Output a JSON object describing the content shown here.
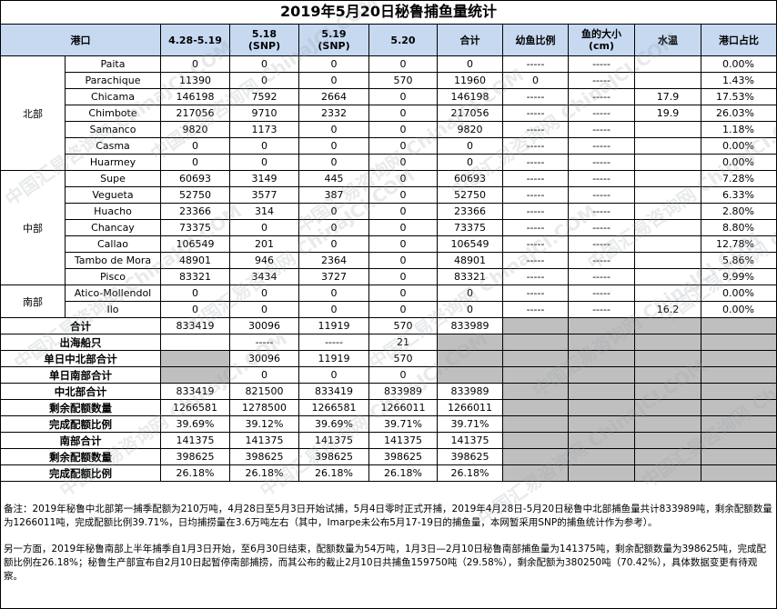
{
  "title": "2019年5月20日秘鲁捕鱼量统计",
  "headers": {
    "port": "港口",
    "c1": "4.28-5.19",
    "c2_l1": "5.18",
    "c2_l2": "(SNP)",
    "c3_l1": "5.19",
    "c3_l2": "(SNP)",
    "c4": "5.20",
    "total": "合计",
    "juvenile": "幼鱼比例",
    "size_l1": "鱼的大小",
    "size_l2": "(cm)",
    "temp": "水温",
    "share": "港口占比"
  },
  "regions": [
    {
      "name": "北部",
      "ports": [
        {
          "name": "Paita",
          "c1": "0",
          "c2": "0",
          "c3": "0",
          "c4": "0",
          "total": "0",
          "juvenile": "-----",
          "size": "-----",
          "temp": "",
          "share": "0.00%"
        },
        {
          "name": "Parachique",
          "c1": "11390",
          "c2": "0",
          "c3": "0",
          "c4": "570",
          "total": "11960",
          "juvenile": "0",
          "size": "-----",
          "temp": "",
          "share": "1.43%"
        },
        {
          "name": "Chicama",
          "c1": "146198",
          "c2": "7592",
          "c3": "2664",
          "c4": "0",
          "total": "146198",
          "juvenile": "-----",
          "size": "-----",
          "temp": "17.9",
          "share": "17.53%"
        },
        {
          "name": "Chimbote",
          "c1": "217056",
          "c2": "9710",
          "c3": "2332",
          "c4": "0",
          "total": "217056",
          "juvenile": "-----",
          "size": "-----",
          "temp": "19.9",
          "share": "26.03%"
        },
        {
          "name": "Samanco",
          "c1": "9820",
          "c2": "1173",
          "c3": "0",
          "c4": "0",
          "total": "9820",
          "juvenile": "-----",
          "size": "-----",
          "temp": "",
          "share": "1.18%"
        },
        {
          "name": "Casma",
          "c1": "0",
          "c2": "0",
          "c3": "0",
          "c4": "0",
          "total": "0",
          "juvenile": "-----",
          "size": "-----",
          "temp": "",
          "share": "0.00%"
        },
        {
          "name": "Huarmey",
          "c1": "0",
          "c2": "0",
          "c3": "0",
          "c4": "0",
          "total": "0",
          "juvenile": "-----",
          "size": "-----",
          "temp": "",
          "share": "0.00%"
        }
      ]
    },
    {
      "name": "中部",
      "ports": [
        {
          "name": "Supe",
          "c1": "60693",
          "c2": "3149",
          "c3": "445",
          "c4": "0",
          "total": "60693",
          "juvenile": "-----",
          "size": "-----",
          "temp": "",
          "share": "7.28%"
        },
        {
          "name": "Vegueta",
          "c1": "52750",
          "c2": "3577",
          "c3": "387",
          "c4": "0",
          "total": "52750",
          "juvenile": "-----",
          "size": "-----",
          "temp": "",
          "share": "6.33%"
        },
        {
          "name": "Huacho",
          "c1": "23366",
          "c2": "314",
          "c3": "0",
          "c4": "0",
          "total": "23366",
          "juvenile": "-----",
          "size": "-----",
          "temp": "",
          "share": "2.80%"
        },
        {
          "name": "Chancay",
          "c1": "73375",
          "c2": "0",
          "c3": "0",
          "c4": "0",
          "total": "73375",
          "juvenile": "-----",
          "size": "-----",
          "temp": "",
          "share": "8.80%"
        },
        {
          "name": "Callao",
          "c1": "106549",
          "c2": "201",
          "c3": "0",
          "c4": "0",
          "total": "106549",
          "juvenile": "-----",
          "size": "-----",
          "temp": "",
          "share": "12.78%"
        },
        {
          "name": "Tambo de Mora",
          "c1": "48901",
          "c2": "946",
          "c3": "2364",
          "c4": "0",
          "total": "48901",
          "juvenile": "-----",
          "size": "-----",
          "temp": "",
          "share": "5.86%"
        },
        {
          "name": "Pisco",
          "c1": "83321",
          "c2": "3434",
          "c3": "3727",
          "c4": "0",
          "total": "83321",
          "juvenile": "-----",
          "size": "-----",
          "temp": "",
          "share": "9.99%"
        }
      ]
    },
    {
      "name": "南部",
      "ports": [
        {
          "name": "Atico-Mollendol",
          "c1": "0",
          "c2": "0",
          "c3": "0",
          "c4": "0",
          "total": "0",
          "juvenile": "-----",
          "size": "-----",
          "temp": "",
          "share": "0.00%"
        },
        {
          "name": "Ilo",
          "c1": "0",
          "c2": "0",
          "c3": "0",
          "c4": "0",
          "total": "0",
          "juvenile": "-----",
          "size": "-----",
          "temp": "16.2",
          "share": "0.00%"
        }
      ]
    }
  ],
  "summary": [
    {
      "label": "合计",
      "c1": "833419",
      "c2": "30096",
      "c3": "11919",
      "c4": "570",
      "total": "833989",
      "gray": [
        false,
        false,
        false,
        false,
        false
      ]
    },
    {
      "label": "出海船只",
      "c1": "",
      "c2": "-----",
      "c3": "-----",
      "c4": "21",
      "total": "",
      "gray": [
        false,
        false,
        false,
        false,
        true
      ]
    },
    {
      "label": "单日中北部合计",
      "c1": "",
      "c2": "30096",
      "c3": "11919",
      "c4": "570",
      "total": "",
      "gray": [
        true,
        false,
        false,
        false,
        true
      ]
    },
    {
      "label": "单日南部合计",
      "c1": "",
      "c2": "0",
      "c3": "0",
      "c4": "0",
      "total": "",
      "gray": [
        true,
        false,
        false,
        false,
        true
      ]
    },
    {
      "label": "中北部合计",
      "c1": "833419",
      "c2": "821500",
      "c3": "833419",
      "c4": "833989",
      "total": "833989",
      "gray": [
        false,
        false,
        false,
        false,
        false
      ]
    },
    {
      "label": "剩余配额数量",
      "c1": "1266581",
      "c2": "1278500",
      "c3": "1266581",
      "c4": "1266011",
      "total": "1266011",
      "gray": [
        false,
        false,
        false,
        false,
        false
      ]
    },
    {
      "label": "完成配额比例",
      "c1": "39.69%",
      "c2": "39.12%",
      "c3": "39.69%",
      "c4": "39.71%",
      "total": "39.71%",
      "gray": [
        false,
        false,
        false,
        false,
        false
      ]
    },
    {
      "label": "南部合计",
      "c1": "141375",
      "c2": "141375",
      "c3": "141375",
      "c4": "141375",
      "total": "141375",
      "gray": [
        false,
        false,
        false,
        false,
        false
      ]
    },
    {
      "label": "剩余配额数量",
      "c1": "398625",
      "c2": "398625",
      "c3": "398625",
      "c4": "398625",
      "total": "398625",
      "gray": [
        false,
        false,
        false,
        false,
        false
      ]
    },
    {
      "label": "完成配额比例",
      "c1": "26.18%",
      "c2": "26.18%",
      "c3": "26.18%",
      "c4": "26.18%",
      "total": "26.18%",
      "gray": [
        false,
        false,
        false,
        false,
        false
      ]
    }
  ],
  "notes": [
    "备注：2019年秘鲁中北部第一捕季配额为210万吨，4月28日至5月3日开始试捕，5月4日零时正式开捕，2019年4月28日-5月20日秘鲁中北部捕鱼量共计833989吨，剩余配额数量为1266011吨，完成配额比例39.71%，日均捕捞量在3.6万吨左右（其中，Imarpe未公布5月17-19日的捕鱼量，本网暂采用SNP的捕鱼统计作为参考）。",
    "另一方面，2019年秘鲁南部上半年捕季自1月3日开始，至6月30日结束，配额数量为54万吨，1月3日—2月10日秘鲁南部捕鱼量为141375吨，剩余配额数量为398625吨，完成配额比例在26.18%；秘鲁生产部宣布自2月10日起暂停南部捕捞，而其公布的截止2月10日共捕鱼159750吨（29.58%），剩余配额为380250吨（70.42%），具体数据变更有待观察。"
  ],
  "watermark": {
    "text": "中国汇易咨询网 ChinaJCI.COM",
    "color": "#a0aab4"
  },
  "colors": {
    "header_bg": "#c6d9f1",
    "gray_cell": "#bfbfbf"
  }
}
